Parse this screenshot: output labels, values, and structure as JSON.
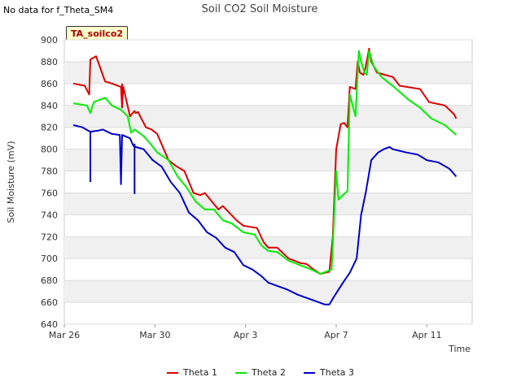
{
  "note_text": "No data for f_Theta_SM4",
  "badge_label": "TA_soilco2",
  "chart_data": {
    "type": "line",
    "title": "Soil CO2 Soil Moisture",
    "xlabel": "Time",
    "ylabel": "Soil Moisture (mV)",
    "xlim": [
      0,
      18
    ],
    "ylim": [
      640,
      900
    ],
    "yticks": [
      640,
      660,
      680,
      700,
      720,
      740,
      760,
      780,
      800,
      820,
      840,
      860,
      880,
      900
    ],
    "xticks": [
      {
        "value": 0,
        "label": "Mar 26"
      },
      {
        "value": 4,
        "label": "Mar 30"
      },
      {
        "value": 8,
        "label": "Apr 3"
      },
      {
        "value": 12,
        "label": "Apr 7"
      },
      {
        "value": 16,
        "label": "Apr 11"
      }
    ],
    "colors": {
      "Theta 1": "#dd0000",
      "Theta 2": "#00ee00",
      "Theta 3": "#0000cc"
    },
    "series": [
      {
        "name": "Theta 1",
        "x": [
          0.4,
          0.9,
          1.1,
          1.15,
          1.4,
          1.8,
          2.1,
          2.5,
          2.55,
          2.6,
          2.9,
          3.1,
          3.15,
          3.25,
          3.6,
          3.85,
          4.1,
          4.6,
          4.9,
          5.3,
          5.7,
          6.0,
          6.2,
          6.8,
          7.0,
          7.6,
          7.9,
          8.5,
          8.8,
          9.0,
          9.4,
          9.9,
          10.4,
          10.7,
          11.0,
          11.3,
          11.7,
          11.85,
          12.0,
          12.2,
          12.35,
          12.5,
          12.6,
          12.85,
          12.95,
          13.05,
          13.2,
          13.3,
          13.45,
          13.55,
          13.8,
          14.5,
          14.8,
          15.7,
          16.1,
          16.8,
          17.2,
          17.3
        ],
        "y": [
          860,
          858,
          850,
          882,
          885,
          862,
          860,
          857,
          838,
          857,
          830,
          835,
          833,
          834,
          820,
          818,
          814,
          790,
          785,
          780,
          760,
          758,
          760,
          745,
          748,
          735,
          730,
          728,
          715,
          710,
          710,
          700,
          696,
          695,
          690,
          686,
          688,
          720,
          800,
          823,
          824,
          820,
          857,
          855,
          880,
          870,
          868,
          875,
          892,
          880,
          870,
          866,
          858,
          855,
          843,
          840,
          832,
          828
        ]
      },
      {
        "name": "Theta 2",
        "x": [
          0.4,
          1.0,
          1.15,
          1.3,
          1.8,
          2.1,
          2.5,
          2.8,
          2.95,
          3.1,
          3.5,
          3.8,
          4.1,
          4.6,
          5.0,
          5.4,
          5.8,
          6.2,
          6.6,
          7.0,
          7.4,
          7.9,
          8.4,
          8.7,
          9.0,
          9.4,
          9.9,
          10.4,
          10.9,
          11.3,
          11.8,
          12.0,
          12.1,
          12.4,
          12.5,
          12.6,
          12.85,
          13.0,
          13.1,
          13.25,
          13.35,
          13.45,
          13.65,
          14.0,
          14.6,
          15.2,
          15.7,
          16.2,
          16.8,
          17.3
        ],
        "y": [
          842,
          840,
          833,
          843,
          847,
          840,
          836,
          830,
          815,
          818,
          812,
          805,
          797,
          790,
          775,
          765,
          752,
          745,
          745,
          735,
          732,
          724,
          722,
          712,
          707,
          706,
          698,
          694,
          690,
          686,
          690,
          780,
          754,
          760,
          762,
          850,
          830,
          890,
          880,
          870,
          868,
          890,
          876,
          866,
          856,
          845,
          838,
          828,
          822,
          813
        ]
      },
      {
        "name": "Theta 3",
        "x": [
          0.4,
          0.8,
          1.05,
          1.15,
          1.5,
          1.7,
          2.1,
          2.45,
          2.5,
          2.55,
          2.9,
          3.05,
          3.15,
          3.5,
          3.9,
          4.3,
          4.7,
          5.1,
          5.5,
          5.9,
          6.3,
          6.7,
          7.1,
          7.5,
          7.9,
          8.3,
          8.7,
          9.0,
          9.4,
          9.8,
          10.3,
          10.7,
          11.1,
          11.5,
          11.7,
          11.9,
          12.3,
          12.6,
          12.9,
          13.1,
          13.3,
          13.55,
          13.85,
          14.1,
          14.35,
          14.5,
          15.1,
          15.6,
          16.0,
          16.5,
          17.0,
          17.3
        ],
        "y": [
          822,
          820,
          817,
          816,
          817,
          818,
          814,
          813,
          768,
          813,
          810,
          803,
          802,
          800,
          790,
          784,
          770,
          760,
          742,
          735,
          724,
          719,
          710,
          706,
          694,
          690,
          684,
          678,
          675,
          672,
          667,
          664,
          661,
          658,
          658,
          665,
          678,
          687,
          700,
          740,
          760,
          790,
          797,
          800,
          802,
          800,
          797,
          795,
          790,
          788,
          782,
          775
        ]
      }
    ],
    "spikes": [
      {
        "series": "Theta 3",
        "x": 1.15,
        "from": 816,
        "to": 770
      },
      {
        "series": "Theta 3",
        "x": 3.1,
        "from": 805,
        "to": 759
      },
      {
        "series": "Theta 1",
        "x": 2.55,
        "from": 860,
        "to": 838
      }
    ],
    "legend": {
      "position": "bottom-center",
      "entries": [
        "Theta 1",
        "Theta 2",
        "Theta 3"
      ]
    }
  }
}
